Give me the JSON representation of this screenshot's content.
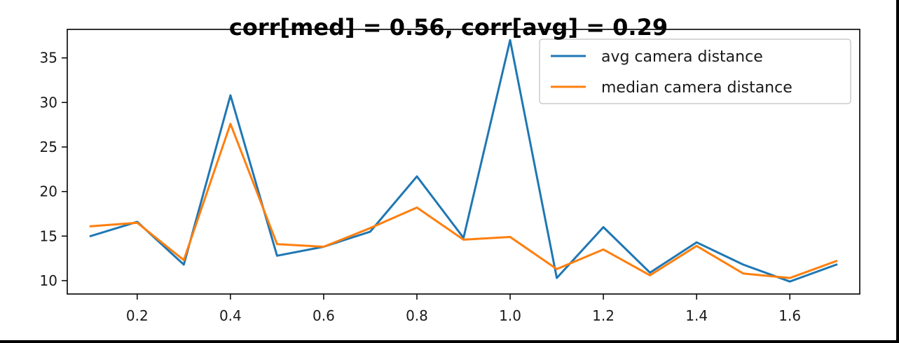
{
  "chart_data": {
    "type": "line",
    "title": "corr[med] = 0.56, corr[avg] = 0.29",
    "xlabel": "",
    "ylabel": "",
    "x": [
      0.1,
      0.2,
      0.3,
      0.4,
      0.5,
      0.6,
      0.7,
      0.8,
      0.9,
      1.0,
      1.1,
      1.2,
      1.3,
      1.4,
      1.5,
      1.6,
      1.7
    ],
    "xlim": [
      0.05,
      1.75
    ],
    "ylim": [
      8.5,
      38.2
    ],
    "xticks": [
      0.2,
      0.4,
      0.6,
      0.8,
      1.0,
      1.2,
      1.4,
      1.6
    ],
    "xtick_labels": [
      "0.2",
      "0.4",
      "0.6",
      "0.8",
      "1.0",
      "1.2",
      "1.4",
      "1.6"
    ],
    "yticks": [
      10,
      15,
      20,
      25,
      30,
      35
    ],
    "ytick_labels": [
      "10",
      "15",
      "20",
      "25",
      "30",
      "35"
    ],
    "grid": false,
    "legend_position": "top-right",
    "series": [
      {
        "name": "avg camera distance",
        "color": "#1f77b4",
        "values": [
          15.0,
          16.6,
          11.8,
          30.8,
          12.8,
          13.8,
          15.5,
          21.7,
          14.8,
          37.0,
          10.3,
          16.0,
          10.9,
          14.3,
          11.8,
          9.9,
          11.8
        ]
      },
      {
        "name": "median camera distance",
        "color": "#ff7f0e",
        "values": [
          16.1,
          16.5,
          12.3,
          27.6,
          14.1,
          13.8,
          15.9,
          18.2,
          14.6,
          14.9,
          11.3,
          13.5,
          10.6,
          13.9,
          10.8,
          10.3,
          12.2
        ]
      }
    ]
  }
}
